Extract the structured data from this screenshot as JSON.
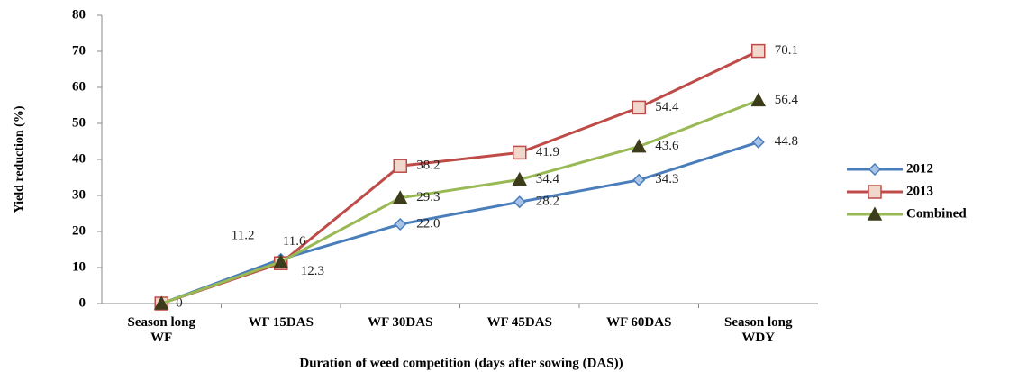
{
  "chart_data": {
    "type": "line",
    "y_label": "Yield reduction (%)",
    "x_label": "Duration of weed competition (days after sowing (DAS))",
    "categories": [
      "Season long WF",
      "WF 15DAS",
      "WF 30DAS",
      "WF 45DAS",
      "WF 60DAS",
      "Season long WDY"
    ],
    "series": [
      {
        "name": "2012",
        "color": "#4a7ebb",
        "marker": "diamond",
        "marker_fill": "#a9c4e6",
        "values": [
          0,
          12.3,
          22.0,
          28.2,
          34.3,
          44.8
        ],
        "value_labels": [
          "0",
          "12.3",
          "22.0",
          "28.2",
          "34.3",
          "44.8"
        ]
      },
      {
        "name": "2013",
        "color": "#be4b48",
        "marker": "square",
        "marker_fill": "#f2d8cc",
        "values": [
          0,
          11.2,
          38.2,
          41.9,
          54.4,
          70.1
        ],
        "value_labels": [
          null,
          "11.2",
          "38.2",
          "41.9",
          "54.4",
          "70.1"
        ]
      },
      {
        "name": "Combined",
        "color": "#98b954",
        "marker": "triangle",
        "marker_fill": "#3d3d1c",
        "values": [
          0,
          11.6,
          29.3,
          34.4,
          43.6,
          56.4
        ],
        "value_labels": [
          null,
          "11.6",
          "29.3",
          "34.4",
          "43.6",
          "56.4"
        ]
      }
    ],
    "ylim": [
      0,
      80
    ],
    "yticks": [
      0,
      10,
      20,
      30,
      40,
      50,
      60,
      70,
      80
    ],
    "grid": false,
    "legend": "right"
  }
}
